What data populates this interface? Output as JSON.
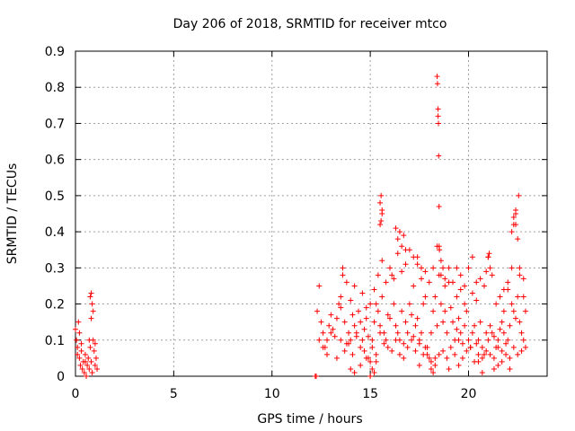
{
  "chart_data": {
    "type": "scatter",
    "title": "Day 206 of 2018, SRMTID for receiver mtco",
    "xlabel": "GPS time / hours",
    "ylabel": "SRMTID / TECUs",
    "xlim": [
      0,
      24
    ],
    "ylim": [
      0,
      0.9
    ],
    "xticks": [
      0,
      5,
      10,
      15,
      20
    ],
    "yticks": [
      0,
      0.1,
      0.2,
      0.3,
      0.4,
      0.5,
      0.6,
      0.7,
      0.8,
      0.9
    ],
    "grid": true,
    "marker": "+",
    "color": "#ff0000",
    "series": [
      {
        "name": "SRMTID",
        "x": [
          0.0,
          0.05,
          0.1,
          0.15,
          0.2,
          0.25,
          0.3,
          0.35,
          0.4,
          0.45,
          0.5,
          0.55,
          0.6,
          0.65,
          0.7,
          0.75,
          0.8,
          0.85,
          0.9,
          0.95,
          1.0,
          1.05,
          1.1,
          0.1,
          0.2,
          0.3,
          0.5,
          0.7,
          0.8,
          0.85,
          0.9,
          1.0,
          0.75,
          0.8,
          12.2,
          12.25,
          12.3,
          12.4,
          12.5,
          12.6,
          12.7,
          12.8,
          12.9,
          13.0,
          13.1,
          13.2,
          13.3,
          13.4,
          13.5,
          13.6,
          13.7,
          13.8,
          13.9,
          14.0,
          14.1,
          14.2,
          14.3,
          14.4,
          14.5,
          14.6,
          14.7,
          14.8,
          14.9,
          15.0,
          15.1,
          15.2,
          15.3,
          15.4,
          15.5,
          15.6,
          15.7,
          15.8,
          15.9,
          16.0,
          16.1,
          16.2,
          16.3,
          16.4,
          16.5,
          16.6,
          16.7,
          16.8,
          16.9,
          17.0,
          17.1,
          17.2,
          17.3,
          17.4,
          17.5,
          17.6,
          17.7,
          17.8,
          17.9,
          18.0,
          18.1,
          18.2,
          18.3,
          18.4,
          18.5,
          18.6,
          18.7,
          18.8,
          18.9,
          19.0,
          19.1,
          19.2,
          19.3,
          19.4,
          19.5,
          19.6,
          19.7,
          19.8,
          19.9,
          20.0,
          20.1,
          20.2,
          20.3,
          20.4,
          20.5,
          20.6,
          20.7,
          20.8,
          20.9,
          21.0,
          21.1,
          21.2,
          21.3,
          21.4,
          21.5,
          21.6,
          21.7,
          21.8,
          21.9,
          22.0,
          22.1,
          22.2,
          22.3,
          22.4,
          22.5,
          22.6,
          22.7,
          22.8,
          22.9,
          12.4,
          12.6,
          12.8,
          13.0,
          13.3,
          13.5,
          13.7,
          13.9,
          14.1,
          14.3,
          14.5,
          14.7,
          14.9,
          15.1,
          15.3,
          15.5,
          15.7,
          15.9,
          16.1,
          16.3,
          16.5,
          16.7,
          16.9,
          17.1,
          17.3,
          17.5,
          17.7,
          17.9,
          18.1,
          18.3,
          18.5,
          18.7,
          18.9,
          19.1,
          19.3,
          19.5,
          19.7,
          19.9,
          20.1,
          20.3,
          20.5,
          20.7,
          20.9,
          21.1,
          21.3,
          21.5,
          21.7,
          21.9,
          22.1,
          22.3,
          22.5,
          22.7,
          22.9,
          13.5,
          13.6,
          13.8,
          14.0,
          14.2,
          14.6,
          14.8,
          15.0,
          15.2,
          15.4,
          15.6,
          15.8,
          16.0,
          16.2,
          16.4,
          16.6,
          16.8,
          17.0,
          17.2,
          17.4,
          17.6,
          17.8,
          18.0,
          18.2,
          18.4,
          18.6,
          18.8,
          19.0,
          19.2,
          19.4,
          19.6,
          19.8,
          20.0,
          20.2,
          20.4,
          20.6,
          20.8,
          21.0,
          21.2,
          21.4,
          21.6,
          21.8,
          22.0,
          22.2,
          22.4,
          22.6,
          22.8,
          15.5,
          15.55,
          15.6,
          15.5,
          15.6,
          15.55,
          18.4,
          18.42,
          18.45,
          18.45,
          18.47,
          18.48,
          18.5,
          18.5,
          18.52,
          22.2,
          22.3,
          22.4,
          22.5,
          22.55,
          22.4,
          22.3,
          21.0,
          21.05,
          21.1,
          20.9,
          16.3,
          16.4,
          16.5,
          16.6,
          16.7,
          16.8,
          17.2,
          17.4,
          17.6,
          17.8,
          18.6,
          18.7,
          18.8,
          19.4,
          19.6,
          19.8,
          20.2,
          20.4,
          21.8,
          22.0,
          22.6,
          22.8,
          14.0,
          14.2,
          14.5,
          14.8,
          15.0,
          15.1,
          15.2,
          15.3,
          17.5,
          18.1,
          18.2,
          18.3,
          19.0,
          19.5,
          20.5,
          20.7,
          21.3,
          21.5,
          21.7,
          22.1
        ],
        "y": [
          0.13,
          0.1,
          0.08,
          0.15,
          0.05,
          0.03,
          0.07,
          0.02,
          0.04,
          0.01,
          0.06,
          0.0,
          0.03,
          0.05,
          0.02,
          0.08,
          0.04,
          0.01,
          0.1,
          0.07,
          0.03,
          0.05,
          0.02,
          0.06,
          0.12,
          0.09,
          0.04,
          0.1,
          0.23,
          0.2,
          0.18,
          0.09,
          0.22,
          0.16,
          0.0,
          0.0,
          0.18,
          0.25,
          0.15,
          0.12,
          0.08,
          0.1,
          0.14,
          0.17,
          0.13,
          0.11,
          0.16,
          0.2,
          0.19,
          0.28,
          0.15,
          0.09,
          0.12,
          0.1,
          0.17,
          0.14,
          0.12,
          0.18,
          0.15,
          0.1,
          0.13,
          0.16,
          0.11,
          0.04,
          0.08,
          0.15,
          0.2,
          0.18,
          0.14,
          0.22,
          0.12,
          0.1,
          0.17,
          0.16,
          0.28,
          0.2,
          0.14,
          0.12,
          0.1,
          0.18,
          0.09,
          0.15,
          0.12,
          0.2,
          0.17,
          0.11,
          0.14,
          0.16,
          0.1,
          0.12,
          0.2,
          0.08,
          0.06,
          0.05,
          0.12,
          0.18,
          0.22,
          0.14,
          0.28,
          0.2,
          0.15,
          0.18,
          0.12,
          0.26,
          0.19,
          0.15,
          0.1,
          0.13,
          0.16,
          0.12,
          0.09,
          0.14,
          0.18,
          0.1,
          0.08,
          0.12,
          0.14,
          0.09,
          0.1,
          0.15,
          0.08,
          0.06,
          0.12,
          0.1,
          0.14,
          0.12,
          0.11,
          0.08,
          0.1,
          0.13,
          0.15,
          0.12,
          0.09,
          0.1,
          0.14,
          0.2,
          0.18,
          0.16,
          0.22,
          0.15,
          0.12,
          0.1,
          0.18,
          0.1,
          0.08,
          0.06,
          0.12,
          0.05,
          0.1,
          0.07,
          0.09,
          0.06,
          0.11,
          0.08,
          0.07,
          0.05,
          0.1,
          0.06,
          0.12,
          0.09,
          0.08,
          0.07,
          0.1,
          0.06,
          0.05,
          0.08,
          0.1,
          0.07,
          0.09,
          0.06,
          0.08,
          0.04,
          0.03,
          0.06,
          0.07,
          0.05,
          0.08,
          0.06,
          0.1,
          0.05,
          0.07,
          0.08,
          0.04,
          0.06,
          0.05,
          0.07,
          0.06,
          0.05,
          0.08,
          0.07,
          0.06,
          0.05,
          0.08,
          0.06,
          0.07,
          0.08,
          0.22,
          0.3,
          0.26,
          0.21,
          0.25,
          0.23,
          0.19,
          0.2,
          0.24,
          0.28,
          0.32,
          0.26,
          0.3,
          0.27,
          0.34,
          0.29,
          0.31,
          0.35,
          0.25,
          0.33,
          0.27,
          0.22,
          0.26,
          0.3,
          0.36,
          0.28,
          0.25,
          0.3,
          0.26,
          0.22,
          0.24,
          0.2,
          0.3,
          0.23,
          0.21,
          0.27,
          0.25,
          0.33,
          0.28,
          0.2,
          0.22,
          0.18,
          0.24,
          0.3,
          0.42,
          0.28,
          0.22,
          0.48,
          0.5,
          0.45,
          0.42,
          0.46,
          0.43,
          0.83,
          0.81,
          0.74,
          0.72,
          0.7,
          0.61,
          0.47,
          0.36,
          0.35,
          0.4,
          0.44,
          0.45,
          0.38,
          0.5,
          0.46,
          0.42,
          0.33,
          0.34,
          0.3,
          0.29,
          0.41,
          0.38,
          0.4,
          0.36,
          0.39,
          0.35,
          0.33,
          0.31,
          0.3,
          0.29,
          0.32,
          0.3,
          0.27,
          0.3,
          0.28,
          0.25,
          0.33,
          0.26,
          0.24,
          0.26,
          0.3,
          0.27,
          0.02,
          0.01,
          0.03,
          0.05,
          0.0,
          0.02,
          0.01,
          0.04,
          0.03,
          0.02,
          0.01,
          0.05,
          0.02,
          0.03,
          0.04,
          0.01,
          0.02,
          0.03,
          0.04,
          0.02
        ]
      }
    ]
  }
}
